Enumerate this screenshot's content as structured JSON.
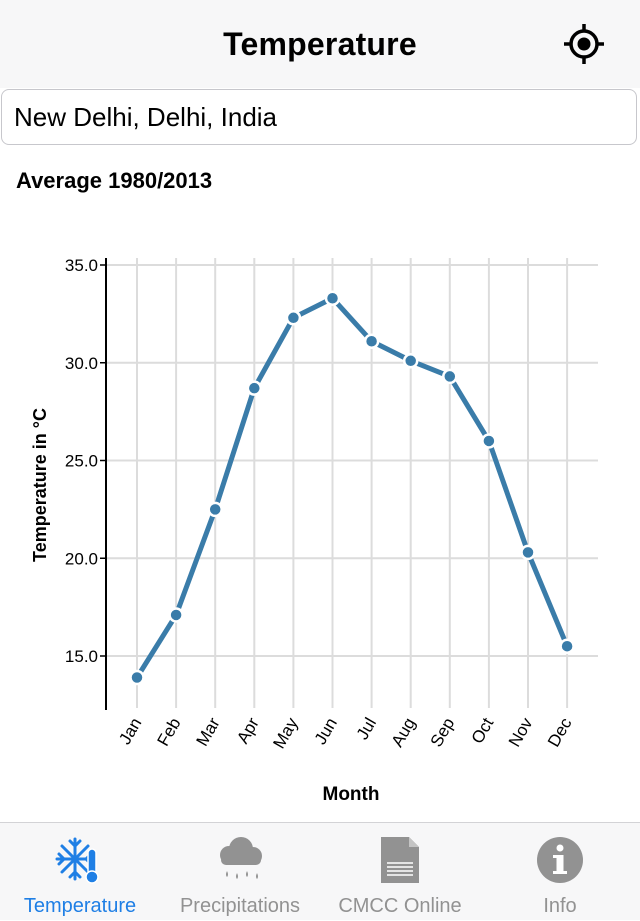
{
  "header": {
    "title": "Temperature"
  },
  "location_input": {
    "value": "New Delhi, Delhi, India",
    "placeholder": ""
  },
  "section": {
    "title": "Average 1980/2013"
  },
  "colors": {
    "accent": "#1f7fe5",
    "series": "#3a7ca9",
    "grid": "#dcdcdc",
    "inactive": "#929292"
  },
  "chart_data": {
    "type": "line",
    "categories": [
      "Jan",
      "Feb",
      "Mar",
      "Apr",
      "May",
      "Jun",
      "Jul",
      "Aug",
      "Sep",
      "Oct",
      "Nov",
      "Dec"
    ],
    "series": [
      {
        "values": [
          13.9,
          17.1,
          22.5,
          28.7,
          32.3,
          33.3,
          31.1,
          30.1,
          29.3,
          26.0,
          20.3,
          15.5
        ]
      }
    ],
    "xlabel": "Month",
    "ylabel": "Temperature in °C",
    "yticks": [
      "15.0",
      "20.0",
      "25.0",
      "30.0",
      "35.0"
    ],
    "ylim": [
      12.5,
      35.0
    ],
    "grid": true,
    "legend": "none"
  },
  "tabs": [
    {
      "label": "Temperature",
      "icon": "snowflake-thermometer-icon",
      "active": true
    },
    {
      "label": "Precipitations",
      "icon": "rain-cloud-icon",
      "active": false
    },
    {
      "label": "CMCC Online",
      "icon": "document-icon",
      "active": false
    },
    {
      "label": "Info",
      "icon": "info-icon",
      "active": false
    }
  ]
}
